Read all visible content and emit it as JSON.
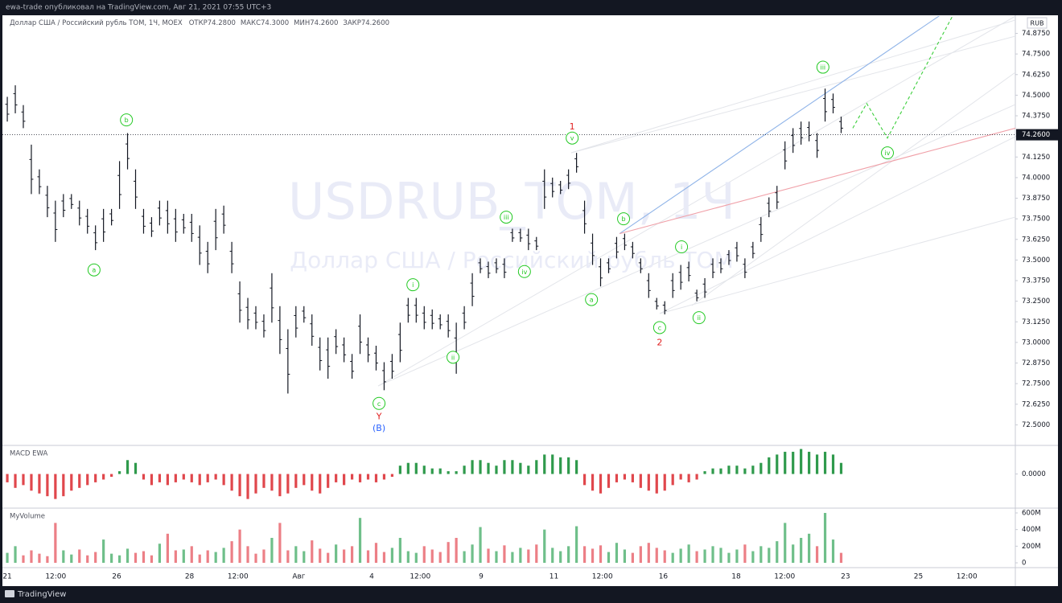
{
  "header": {
    "text": "ewa-trade опубликовал на TradingView.com, Авг 21, 2021 07:55 UTC+3"
  },
  "footer": {
    "brand": "TradingView"
  },
  "chart_data": [
    {
      "type": "hilo",
      "title": "USDRUB_TOM, 1Ч",
      "subtitle": "Доллар США / Российский рубль TOM",
      "legend_title": "Доллар США / Российский рубль TOM, 1Ч, MOEX",
      "ohlc": [
        {
          "name": "ОТКР",
          "value": 74.28,
          "label": "74.2800"
        },
        {
          "name": "МАКС",
          "value": 74.3,
          "label": "74.3000"
        },
        {
          "name": "МИН",
          "value": 74.26,
          "label": "74.2600"
        },
        {
          "name": "ЗАКР",
          "value": 74.26,
          "label": "74.2600"
        }
      ],
      "currency": "RUB",
      "color": "#131722",
      "last_price": {
        "value": 74.26,
        "label": "74.2600"
      },
      "x": [
        0,
        0.22,
        0.44,
        0.66,
        0.88,
        1.1,
        1.32,
        1.54,
        1.76,
        1.98,
        2.2,
        2.42,
        2.64,
        2.86,
        3.08,
        3.3,
        3.52,
        3.74,
        3.96,
        4.18,
        4.4,
        4.62,
        4.84,
        5.06,
        5.28,
        5.5,
        5.72,
        5.94,
        6.16,
        6.38,
        6.6,
        6.82,
        7.04,
        7.26,
        7.48,
        7.7,
        7.92,
        8.14,
        8.36,
        8.58,
        8.8,
        9.02,
        9.24,
        9.46,
        9.68,
        9.9,
        10.12,
        10.34,
        10.56,
        10.78,
        11,
        11.22,
        11.44,
        11.66,
        11.88,
        12.1,
        12.32,
        12.54,
        12.76,
        12.98,
        13.2,
        13.42,
        13.64,
        13.86,
        14.08,
        14.3,
        14.52,
        14.74,
        14.96,
        15.18,
        15.4,
        15.62,
        15.84,
        16.06,
        16.28,
        16.5,
        16.72,
        16.94,
        17.16,
        17.38,
        17.6,
        17.82,
        18.04,
        18.26,
        18.48,
        18.7,
        18.92,
        19.14,
        19.36,
        19.58,
        19.8,
        20.02,
        20.24,
        20.46,
        20.68,
        20.9,
        21.12,
        21.34,
        21.56,
        21.78,
        22,
        22.22,
        22.44,
        22.66,
        22.88
      ],
      "high": [
        74.49,
        74.56,
        74.44,
        74.2,
        74.05,
        73.95,
        73.86,
        73.9,
        73.9,
        73.86,
        73.81,
        73.71,
        73.81,
        73.81,
        74.1,
        74.27,
        74.05,
        73.81,
        73.76,
        73.86,
        73.86,
        73.81,
        73.78,
        73.78,
        73.71,
        73.61,
        73.81,
        73.83,
        73.61,
        73.37,
        73.27,
        73.22,
        73.17,
        73.42,
        73.22,
        73.08,
        73.22,
        73.22,
        73.17,
        73.03,
        73.03,
        73.08,
        73.03,
        72.93,
        73.17,
        73.03,
        72.98,
        72.88,
        72.93,
        73.12,
        73.27,
        73.27,
        73.22,
        73.2,
        73.17,
        73.17,
        73.12,
        73.22,
        73.42,
        73.51,
        73.49,
        73.51,
        73.51,
        73.69,
        73.69,
        73.69,
        73.64,
        74.05,
        74,
        73.98,
        74.05,
        74.15,
        73.86,
        73.66,
        73.51,
        73.51,
        73.64,
        73.66,
        73.61,
        73.51,
        73.42,
        73.27,
        73.25,
        73.42,
        73.47,
        73.49,
        73.32,
        73.39,
        73.51,
        73.51,
        73.56,
        73.61,
        73.51,
        73.61,
        73.76,
        73.88,
        73.95,
        74.22,
        74.3,
        74.34,
        74.34,
        74.27,
        74.54,
        74.51,
        74.37
      ],
      "low": [
        74.34,
        74.39,
        74.3,
        73.9,
        73.9,
        73.76,
        73.61,
        73.76,
        73.81,
        73.71,
        73.66,
        73.56,
        73.61,
        73.71,
        73.81,
        74.05,
        73.81,
        73.66,
        73.64,
        73.71,
        73.66,
        73.61,
        73.66,
        73.61,
        73.47,
        73.42,
        73.56,
        73.66,
        73.42,
        73.12,
        73.08,
        73.08,
        73.03,
        73.12,
        72.93,
        72.69,
        73.03,
        73.12,
        72.98,
        72.83,
        72.78,
        72.93,
        72.88,
        72.78,
        72.93,
        72.88,
        72.83,
        72.71,
        72.78,
        72.88,
        73.12,
        73.12,
        73.08,
        73.08,
        73.08,
        73.03,
        72.81,
        73.08,
        73.22,
        73.42,
        73.39,
        73.42,
        73.39,
        73.61,
        73.61,
        73.56,
        73.56,
        73.81,
        73.88,
        73.9,
        73.93,
        74.03,
        73.66,
        73.47,
        73.34,
        73.42,
        73.51,
        73.56,
        73.51,
        73.42,
        73.27,
        73.2,
        73.17,
        73.27,
        73.32,
        73.37,
        73.25,
        73.27,
        73.39,
        73.42,
        73.47,
        73.49,
        73.39,
        73.51,
        73.61,
        73.76,
        73.81,
        74.05,
        74.15,
        74.2,
        74.22,
        74.12,
        74.34,
        74.39,
        74.27
      ],
      "xlim": [
        -0.2,
        27.66
      ],
      "xticks": [
        {
          "value": 0,
          "label": "21"
        },
        {
          "value": 1.33,
          "label": "12:00"
        },
        {
          "value": 3,
          "label": "26"
        },
        {
          "value": 5,
          "label": "28"
        },
        {
          "value": 6.33,
          "label": "12:00"
        },
        {
          "value": 8,
          "label": "Авг"
        },
        {
          "value": 10,
          "label": "4"
        },
        {
          "value": 11.33,
          "label": "12:00"
        },
        {
          "value": 13,
          "label": "9"
        },
        {
          "value": 15,
          "label": "11"
        },
        {
          "value": 16.33,
          "label": "12:00"
        },
        {
          "value": 18,
          "label": "16"
        },
        {
          "value": 20,
          "label": "18"
        },
        {
          "value": 21.33,
          "label": "12:00"
        },
        {
          "value": 23,
          "label": "23"
        },
        {
          "value": 25,
          "label": "25"
        },
        {
          "value": 26.33,
          "label": "12:00"
        }
      ],
      "ylim": [
        72.38,
        74.98
      ],
      "yticks": [
        {
          "value": 74.875,
          "label": "74.8750"
        },
        {
          "value": 74.75,
          "label": "74.7500"
        },
        {
          "value": 74.625,
          "label": "74.6250"
        },
        {
          "value": 74.5,
          "label": "74.5000"
        },
        {
          "value": 74.375,
          "label": "74.3750"
        },
        {
          "value": 74.25,
          "label": "74.2500"
        },
        {
          "value": 74.125,
          "label": "74.1250"
        },
        {
          "value": 74,
          "label": "74.0000"
        },
        {
          "value": 73.875,
          "label": "73.8750"
        },
        {
          "value": 73.75,
          "label": "73.7500"
        },
        {
          "value": 73.625,
          "label": "73.6250"
        },
        {
          "value": 73.5,
          "label": "73.5000"
        },
        {
          "value": 73.375,
          "label": "73.3750"
        },
        {
          "value": 73.25,
          "label": "73.2500"
        },
        {
          "value": 73.125,
          "label": "73.1250"
        },
        {
          "value": 73,
          "label": "73.0000"
        },
        {
          "value": 72.875,
          "label": "72.8750"
        },
        {
          "value": 72.75,
          "label": "72.7500"
        },
        {
          "value": 72.625,
          "label": "72.6250"
        },
        {
          "value": 72.5,
          "label": "72.5000"
        }
      ],
      "grid": false,
      "annotations": [
        {
          "text": "a",
          "x": 2.38,
          "y": 73.44,
          "color": "#22c922",
          "circled": true
        },
        {
          "text": "b",
          "x": 3.27,
          "y": 74.35,
          "color": "#22c922",
          "circled": true
        },
        {
          "text": "c",
          "x": 10.2,
          "y": 72.63,
          "color": "#22c922",
          "circled": true
        },
        {
          "text": "Y",
          "x": 10.2,
          "y": 72.55,
          "color": "#e02020",
          "circled": false
        },
        {
          "text": "(B)",
          "x": 10.2,
          "y": 72.48,
          "color": "#2962ff",
          "circled": false
        },
        {
          "text": "i",
          "x": 11.13,
          "y": 73.35,
          "color": "#22c922",
          "circled": true
        },
        {
          "text": "ii",
          "x": 12.23,
          "y": 72.91,
          "color": "#22c922",
          "circled": true
        },
        {
          "text": "iii",
          "x": 13.69,
          "y": 73.76,
          "color": "#22c922",
          "circled": true
        },
        {
          "text": "iv",
          "x": 14.19,
          "y": 73.43,
          "color": "#22c922",
          "circled": true
        },
        {
          "text": "v",
          "x": 15.5,
          "y": 74.24,
          "color": "#22c922",
          "circled": true
        },
        {
          "text": "1",
          "x": 15.5,
          "y": 74.31,
          "color": "#e02020",
          "circled": false
        },
        {
          "text": "a",
          "x": 16.03,
          "y": 73.26,
          "color": "#22c922",
          "circled": true
        },
        {
          "text": "b",
          "x": 16.91,
          "y": 73.75,
          "color": "#22c922",
          "circled": true
        },
        {
          "text": "c",
          "x": 17.9,
          "y": 73.09,
          "color": "#22c922",
          "circled": true
        },
        {
          "text": "2",
          "x": 17.9,
          "y": 73,
          "color": "#e02020",
          "circled": false
        },
        {
          "text": "i",
          "x": 18.5,
          "y": 73.58,
          "color": "#22c922",
          "circled": true
        },
        {
          "text": "ii",
          "x": 18.98,
          "y": 73.15,
          "color": "#22c922",
          "circled": true
        },
        {
          "text": "iii",
          "x": 22.38,
          "y": 74.67,
          "color": "#22c922",
          "circled": true
        },
        {
          "text": "iv",
          "x": 24.15,
          "y": 74.15,
          "color": "#22c922",
          "circled": true
        }
      ],
      "trend_lines": [
        {
          "color": "#90b4e8",
          "dashed": false,
          "x": [
            16.8,
            25.63
          ],
          "y": [
            73.66,
            74.99
          ]
        },
        {
          "color": "#f0a0a8",
          "dashed": false,
          "x": [
            16.8,
            27.66
          ],
          "y": [
            73.66,
            74.3
          ]
        },
        {
          "color": "#3ccf3c",
          "dashed": true,
          "x": [
            23.2,
            23.58,
            24.15,
            25.96
          ],
          "y": [
            74.3,
            74.45,
            74.24,
            74.99
          ]
        }
      ]
    },
    {
      "type": "bar",
      "name": "MACD EWA",
      "up_color": "#2f9a4c",
      "down_color": "#e0474c",
      "values": [
        -0.03,
        -0.05,
        -0.04,
        -0.06,
        -0.07,
        -0.08,
        -0.09,
        -0.08,
        -0.06,
        -0.05,
        -0.04,
        -0.03,
        -0.02,
        -0.01,
        0.01,
        0.05,
        0.04,
        -0.02,
        -0.04,
        -0.03,
        -0.04,
        -0.03,
        -0.02,
        -0.03,
        -0.04,
        -0.03,
        -0.02,
        -0.04,
        -0.06,
        -0.08,
        -0.09,
        -0.07,
        -0.05,
        -0.06,
        -0.08,
        -0.07,
        -0.05,
        -0.04,
        -0.06,
        -0.07,
        -0.05,
        -0.03,
        -0.04,
        -0.02,
        -0.03,
        -0.02,
        -0.03,
        -0.02,
        -0.01,
        0.03,
        0.04,
        0.04,
        0.03,
        0.02,
        0.02,
        0.01,
        0.01,
        0.03,
        0.05,
        0.05,
        0.04,
        0.03,
        0.05,
        0.05,
        0.04,
        0.03,
        0.05,
        0.07,
        0.07,
        0.06,
        0.06,
        0.05,
        -0.04,
        -0.06,
        -0.07,
        -0.05,
        -0.03,
        -0.02,
        -0.03,
        -0.05,
        -0.06,
        -0.07,
        -0.06,
        -0.04,
        -0.02,
        -0.03,
        -0.02,
        0.01,
        0.02,
        0.02,
        0.03,
        0.03,
        0.02,
        0.03,
        0.04,
        0.06,
        0.07,
        0.08,
        0.08,
        0.09,
        0.08,
        0.07,
        0.08,
        0.07,
        0.04
      ],
      "ylim": [
        -0.12,
        0.1
      ],
      "yticks": [
        {
          "value": 0,
          "label": "0.0000"
        }
      ]
    },
    {
      "type": "bar",
      "name": "MyVolume",
      "up_color": "#6fbf8a",
      "down_color": "#ec7f86",
      "values": [
        120,
        200,
        90,
        150,
        110,
        80,
        480,
        150,
        100,
        160,
        90,
        130,
        280,
        110,
        90,
        170,
        120,
        140,
        90,
        230,
        350,
        150,
        160,
        200,
        100,
        150,
        130,
        180,
        260,
        400,
        200,
        110,
        160,
        300,
        480,
        150,
        200,
        140,
        270,
        170,
        120,
        220,
        160,
        200,
        540,
        150,
        240,
        130,
        180,
        300,
        140,
        120,
        200,
        160,
        130,
        250,
        300,
        140,
        220,
        430,
        170,
        140,
        210,
        130,
        180,
        160,
        220,
        400,
        180,
        140,
        200,
        440,
        200,
        170,
        210,
        130,
        240,
        160,
        120,
        200,
        240,
        180,
        150,
        120,
        170,
        220,
        140,
        160,
        200,
        180,
        120,
        160,
        220,
        140,
        200,
        180,
        260,
        480,
        220,
        300,
        350,
        200,
        600,
        280,
        120
      ],
      "ylim": [
        -48,
        648
      ],
      "yticks": [
        {
          "value": 600,
          "label": "600M"
        },
        {
          "value": 400,
          "label": "400M"
        },
        {
          "value": 200,
          "label": "200M"
        },
        0
      ]
    }
  ]
}
